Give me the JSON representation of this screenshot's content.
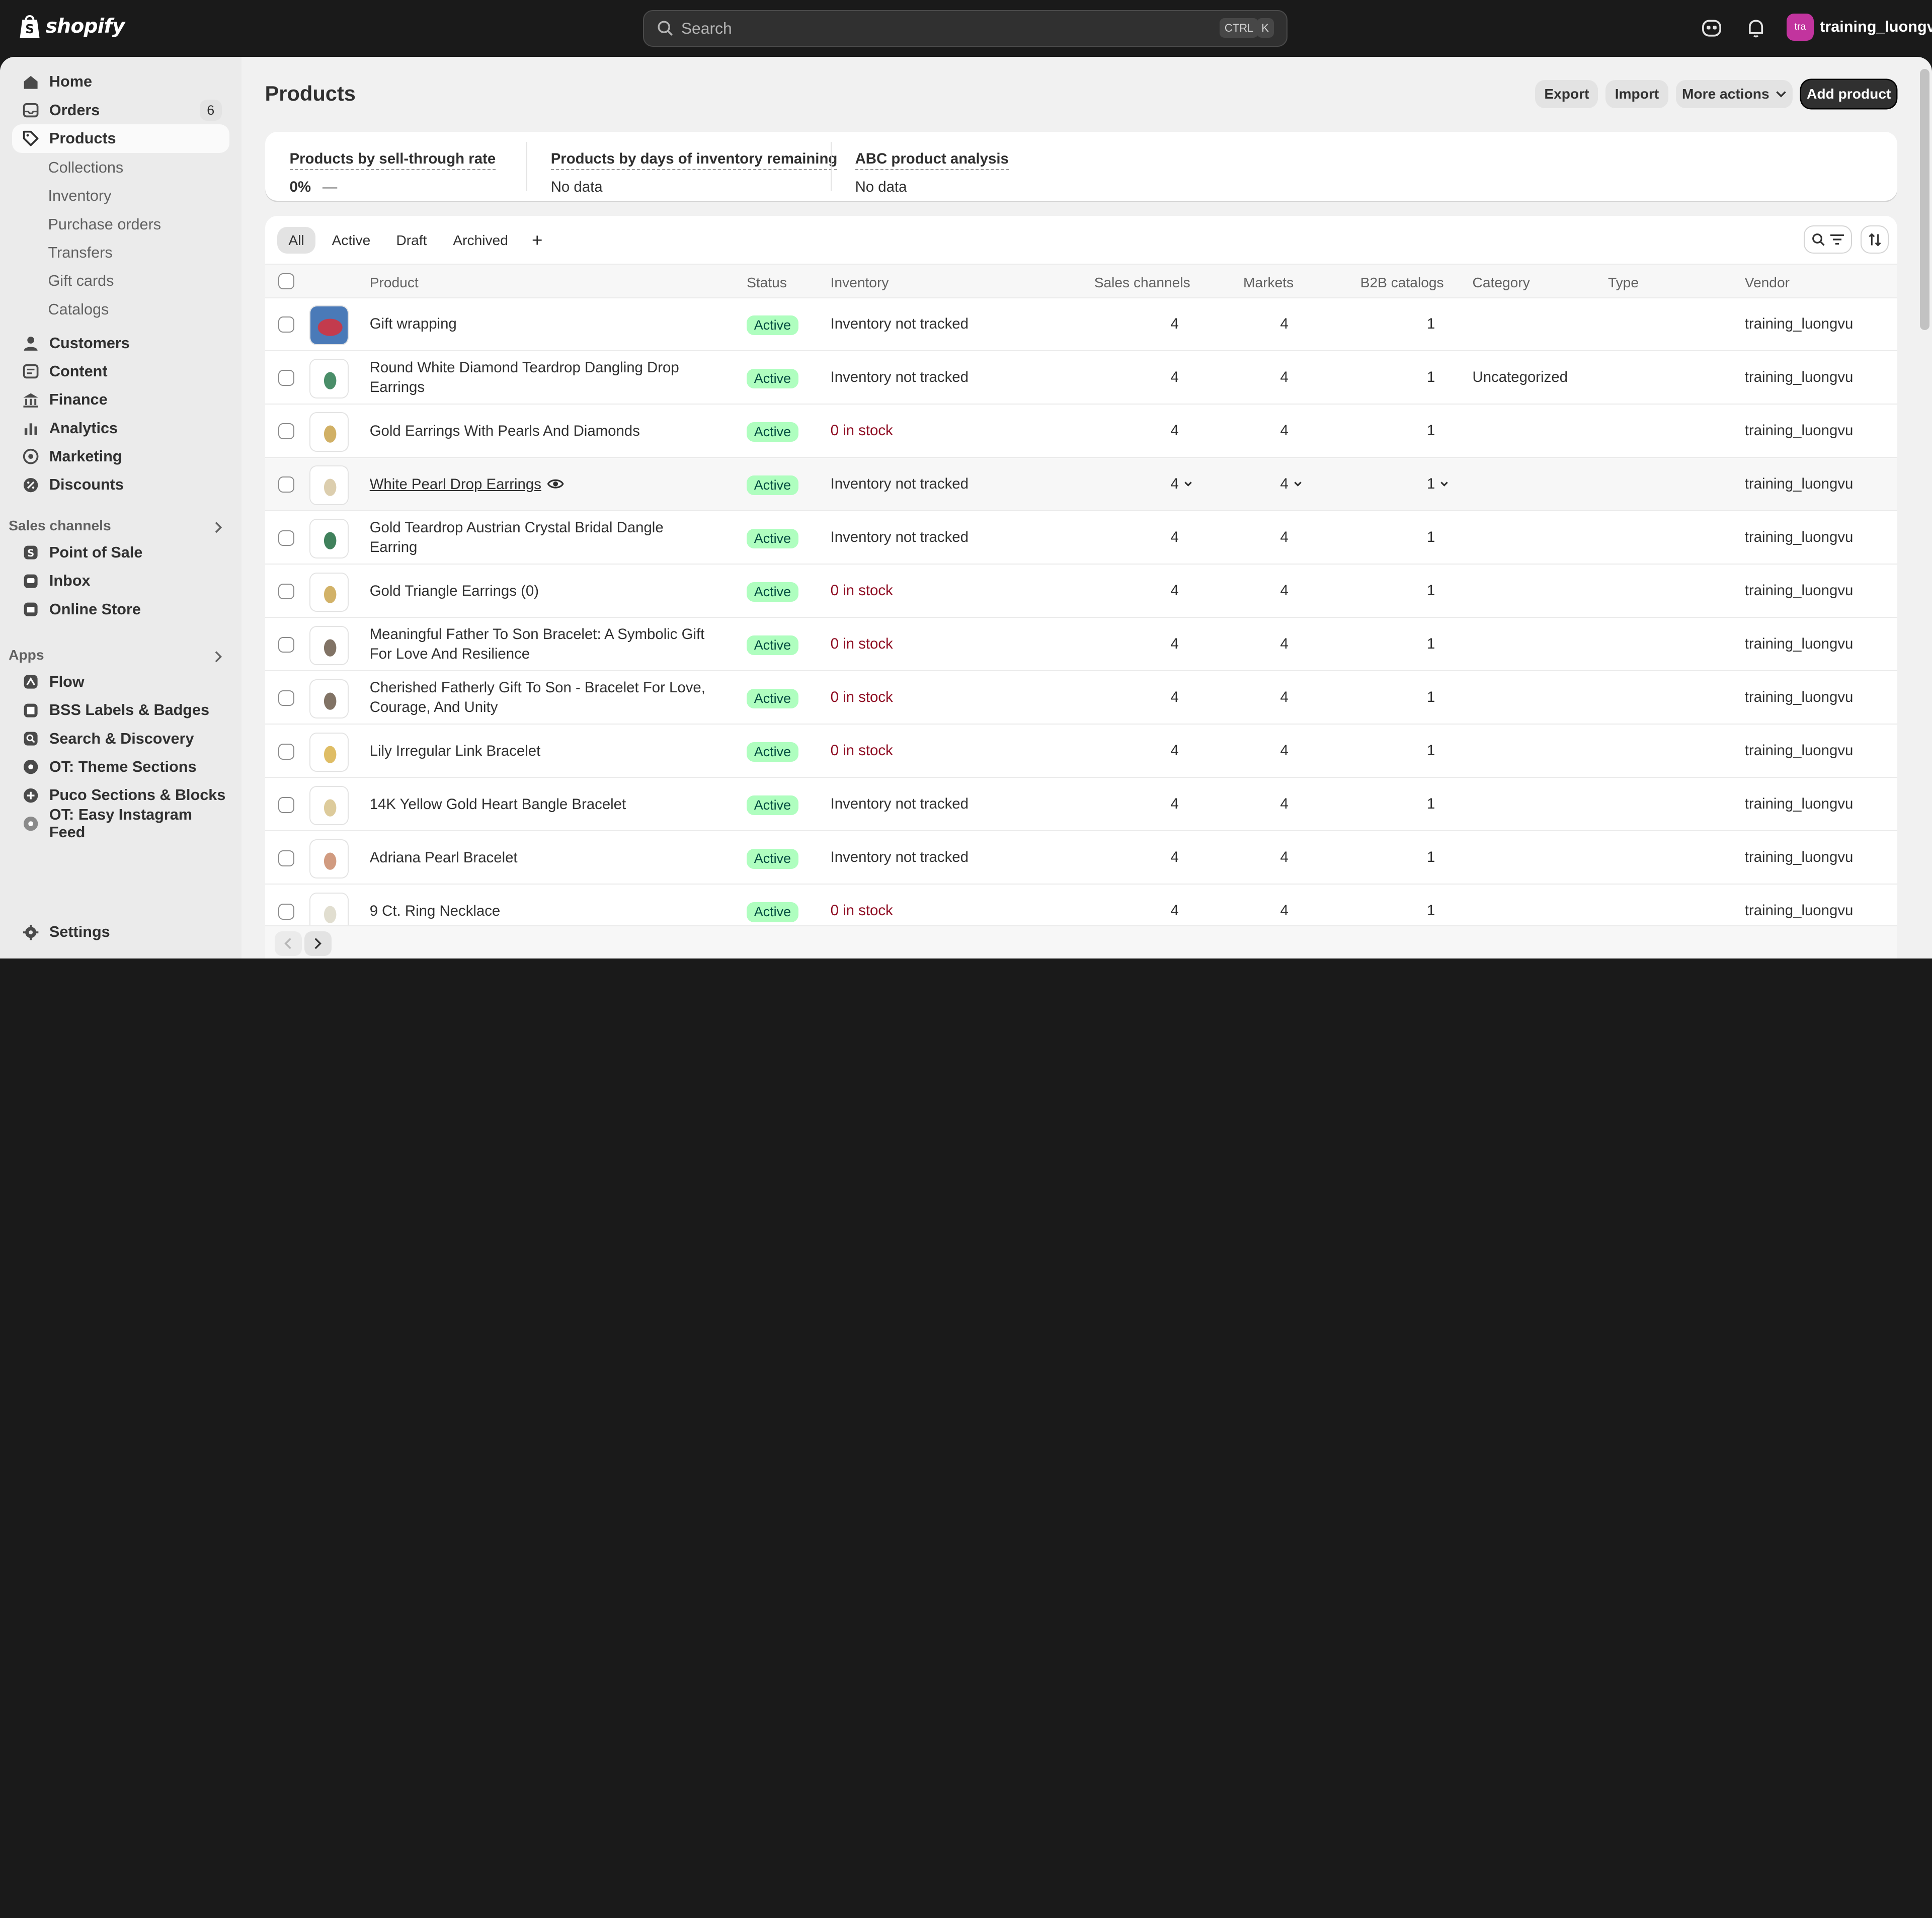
{
  "topbar": {
    "logo_text": "shopify",
    "search_placeholder": "Search",
    "shortcut_ctrl": "CTRL",
    "shortcut_k": "K",
    "avatar_initials": "tra",
    "username": "training_luongvu"
  },
  "sidebar": {
    "home": "Home",
    "orders": "Orders",
    "orders_badge": "6",
    "products": "Products",
    "products_sub": [
      "Collections",
      "Inventory",
      "Purchase orders",
      "Transfers",
      "Gift cards",
      "Catalogs"
    ],
    "customers": "Customers",
    "content": "Content",
    "finance": "Finance",
    "analytics": "Analytics",
    "marketing": "Marketing",
    "discounts": "Discounts",
    "sales_channels_label": "Sales channels",
    "sales_channels": [
      "Point of Sale",
      "Inbox",
      "Online Store"
    ],
    "apps_label": "Apps",
    "apps": [
      "Flow",
      "BSS Labels & Badges",
      "Search & Discovery",
      "OT: Theme Sections",
      "Puco Sections & Blocks",
      "OT: Easy Instagram Feed"
    ],
    "settings": "Settings"
  },
  "page": {
    "title": "Products",
    "export": "Export",
    "import": "Import",
    "more_actions": "More actions",
    "add_product": "Add product"
  },
  "analytics": {
    "sell_through_title": "Products by sell-through rate",
    "sell_through_value": "0%",
    "sell_through_dash": "—",
    "days_title": "Products by days of inventory remaining",
    "days_value": "No data",
    "abc_title": "ABC product analysis",
    "abc_value": "No data"
  },
  "tabs": [
    "All",
    "Active",
    "Draft",
    "Archived",
    "+"
  ],
  "columns": {
    "product": "Product",
    "status": "Status",
    "inventory": "Inventory",
    "sales_channels": "Sales channels",
    "markets": "Markets",
    "b2b": "B2B catalogs",
    "category": "Category",
    "type": "Type",
    "vendor": "Vendor"
  },
  "rows": [
    {
      "name": "Gift wrapping",
      "status": "Active",
      "inventory": "Inventory not tracked",
      "sales": "4",
      "markets": "4",
      "b2b": "1",
      "category": "",
      "vendor": "training_luongvu"
    },
    {
      "name": "Round White Diamond Teardrop Dangling Drop Earrings",
      "status": "Active",
      "inventory": "Inventory not tracked",
      "sales": "4",
      "markets": "4",
      "b2b": "1",
      "category": "Uncategorized",
      "vendor": "training_luongvu"
    },
    {
      "name": "Gold Earrings With Pearls And Diamonds",
      "status": "Active",
      "inventory": "0 in stock",
      "sales": "4",
      "markets": "4",
      "b2b": "1",
      "category": "",
      "vendor": "training_luongvu"
    },
    {
      "name": "White Pearl Drop Earrings",
      "status": "Active",
      "inventory": "Inventory not tracked",
      "sales": "4",
      "markets": "4",
      "b2b": "1",
      "category": "",
      "vendor": "training_luongvu"
    },
    {
      "name": "Gold Teardrop Austrian Crystal Bridal Dangle Earring",
      "status": "Active",
      "inventory": "Inventory not tracked",
      "sales": "4",
      "markets": "4",
      "b2b": "1",
      "category": "",
      "vendor": "training_luongvu"
    },
    {
      "name": "Gold Triangle Earrings (0)",
      "status": "Active",
      "inventory": "0 in stock",
      "sales": "4",
      "markets": "4",
      "b2b": "1",
      "category": "",
      "vendor": "training_luongvu"
    },
    {
      "name": "Meaningful Father To Son Bracelet: A Symbolic Gift For Love And Resilience",
      "status": "Active",
      "inventory": "0 in stock",
      "sales": "4",
      "markets": "4",
      "b2b": "1",
      "category": "",
      "vendor": "training_luongvu"
    },
    {
      "name": "Cherished Fatherly Gift To Son - Bracelet For Love, Courage, And Unity",
      "status": "Active",
      "inventory": "0 in stock",
      "sales": "4",
      "markets": "4",
      "b2b": "1",
      "category": "",
      "vendor": "training_luongvu"
    },
    {
      "name": "Lily Irregular Link Bracelet",
      "status": "Active",
      "inventory": "0 in stock",
      "sales": "4",
      "markets": "4",
      "b2b": "1",
      "category": "",
      "vendor": "training_luongvu"
    },
    {
      "name": "14K Yellow Gold Heart Bangle Bracelet",
      "status": "Active",
      "inventory": "Inventory not tracked",
      "sales": "4",
      "markets": "4",
      "b2b": "1",
      "category": "",
      "vendor": "training_luongvu"
    },
    {
      "name": "Adriana Pearl Bracelet",
      "status": "Active",
      "inventory": "Inventory not tracked",
      "sales": "4",
      "markets": "4",
      "b2b": "1",
      "category": "",
      "vendor": "training_luongvu"
    },
    {
      "name": "9 Ct. Ring Necklace",
      "status": "Active",
      "inventory": "0 in stock",
      "sales": "4",
      "markets": "4",
      "b2b": "1",
      "category": "",
      "vendor": "training_luongvu"
    }
  ],
  "colors": {
    "active_badge_bg": "#affebf",
    "out_of_stock": "#8e0b21",
    "topbar_bg": "#1a1a1a",
    "primary_button": "#303030"
  }
}
